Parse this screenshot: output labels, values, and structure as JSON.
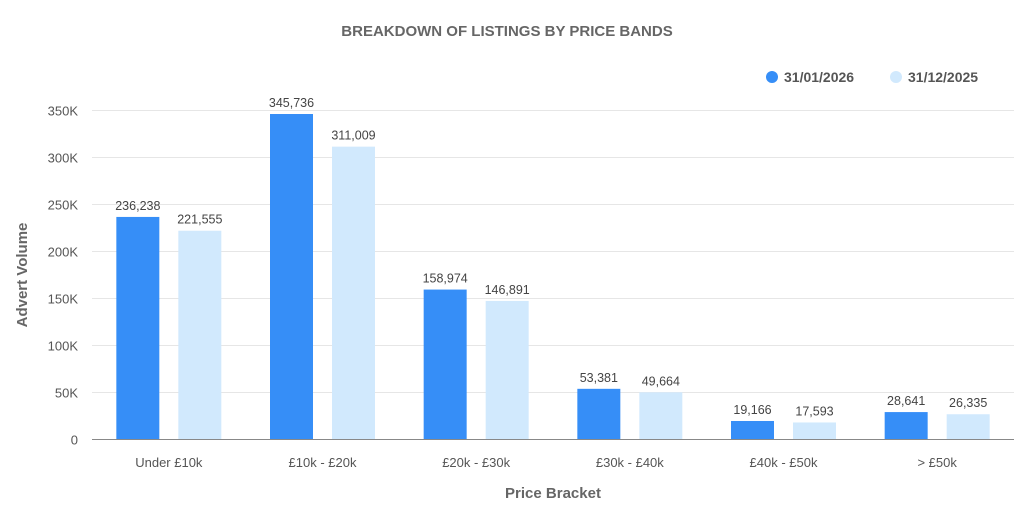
{
  "chart_data": {
    "type": "bar",
    "title": "BREAKDOWN OF LISTINGS BY PRICE BANDS",
    "xlabel": "Price Bracket",
    "ylabel": "Advert Volume",
    "categories": [
      "Under £10k",
      "£10k - £20k",
      "£20k - £30k",
      "£30k - £40k",
      "£40k - £50k",
      "> £50k"
    ],
    "series": [
      {
        "name": "31/01/2026",
        "color": "#368ef7",
        "values": [
          236238,
          345736,
          158974,
          53381,
          19166,
          28641
        ],
        "labels": [
          "236,238",
          "345,736",
          "158,974",
          "53,381",
          "19,166",
          "28,641"
        ]
      },
      {
        "name": "31/12/2025",
        "color": "#d1e9fd",
        "values": [
          221555,
          311009,
          146891,
          49664,
          17593,
          26335
        ],
        "labels": [
          "221,555",
          "311,009",
          "146,891",
          "49,664",
          "17,593",
          "26,335"
        ]
      }
    ],
    "ylim": [
      0,
      350000
    ],
    "yticks": [
      0,
      50000,
      100000,
      150000,
      200000,
      250000,
      300000,
      350000
    ],
    "ytick_labels": [
      "0",
      "50K",
      "100K",
      "150K",
      "200K",
      "250K",
      "300K",
      "350K"
    ],
    "grid": true,
    "legend_position": "top-right"
  }
}
